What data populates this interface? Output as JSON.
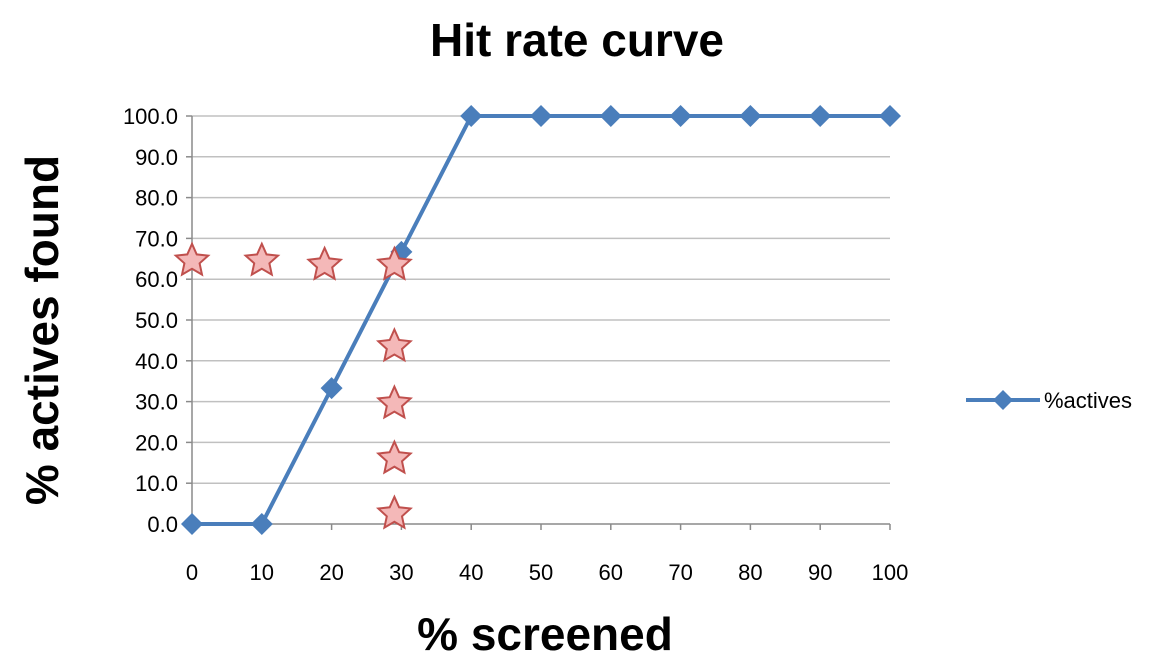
{
  "chart_data": {
    "type": "line",
    "title": "Hit rate curve",
    "xlabel": "% screened",
    "ylabel": "% actives found",
    "categories": [
      "0",
      "10",
      "20",
      "30",
      "40",
      "50",
      "60",
      "70",
      "80",
      "90",
      "100"
    ],
    "ytick_labels": [
      "0.0",
      "10.0",
      "20.0",
      "30.0",
      "40.0",
      "50.0",
      "60.0",
      "70.0",
      "80.0",
      "90.0",
      "100.0"
    ],
    "ylim": [
      0,
      100
    ],
    "grid": true,
    "legend_position": "right",
    "series": [
      {
        "name": "%actives",
        "values": [
          0,
          0,
          33.3,
          66.7,
          100,
          100,
          100,
          100,
          100,
          100,
          100
        ],
        "color": "#4a7ebb",
        "marker": "diamond"
      }
    ],
    "annotations": {
      "marker": "star",
      "fill": "#f4b8b8",
      "stroke": "#c0504d",
      "points": [
        {
          "x": 0,
          "y": 64.5
        },
        {
          "x": 10,
          "y": 64.5
        },
        {
          "x": 19,
          "y": 63.5
        },
        {
          "x": 29,
          "y": 63.5
        },
        {
          "x": 29,
          "y": 43.5
        },
        {
          "x": 29,
          "y": 29.5
        },
        {
          "x": 29,
          "y": 16
        },
        {
          "x": 29,
          "y": 2.5
        }
      ]
    }
  }
}
